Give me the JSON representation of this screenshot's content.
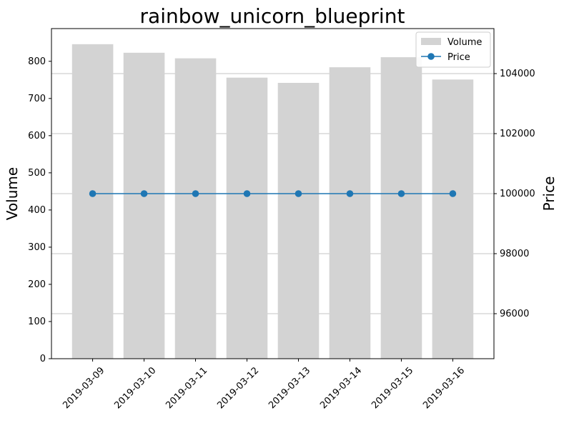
{
  "chart_data": {
    "type": "bar+line",
    "title": "rainbow_unicorn_blueprint",
    "xlabel": "",
    "ylabel_left": "Volume",
    "ylabel_right": "Price",
    "categories": [
      "2019-03-09",
      "2019-03-10",
      "2019-03-11",
      "2019-03-12",
      "2019-03-13",
      "2019-03-14",
      "2019-03-15",
      "2019-03-16"
    ],
    "series": [
      {
        "name": "Volume",
        "type": "bar",
        "axis": "left",
        "color": "#d3d3d3",
        "values": [
          846,
          823,
          808,
          756,
          742,
          784,
          811,
          751
        ]
      },
      {
        "name": "Price",
        "type": "line",
        "axis": "right",
        "color": "#1f77b4",
        "marker": "circle",
        "values": [
          100000,
          100000,
          100000,
          100000,
          100000,
          100000,
          100000,
          100000
        ]
      }
    ],
    "ylim_left": [
      0,
      888
    ],
    "yticks_left": [
      0,
      100,
      200,
      300,
      400,
      500,
      600,
      700,
      800
    ],
    "ylim_right": [
      94500,
      105500
    ],
    "yticks_right": [
      96000,
      98000,
      100000,
      102000,
      104000
    ],
    "grid": "horizontal lines on right axis ticks",
    "legend": "top-right"
  }
}
